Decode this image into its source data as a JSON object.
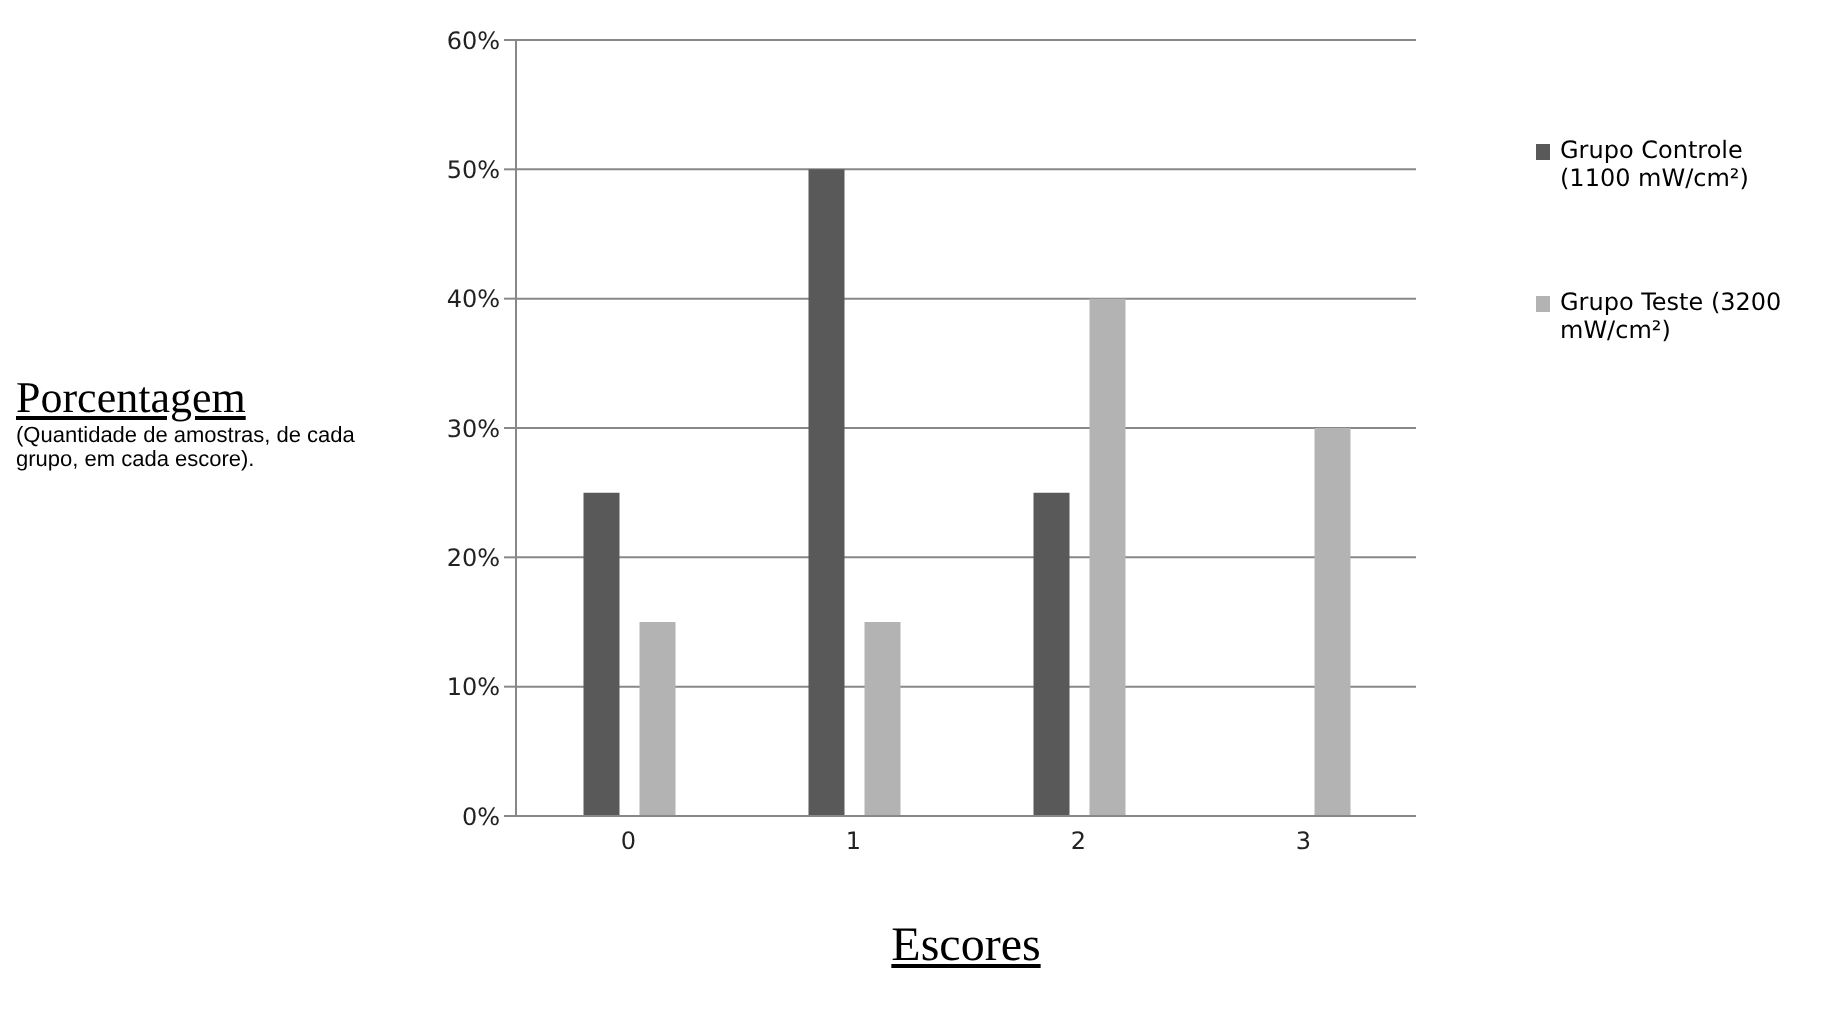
{
  "chart_data": {
    "type": "bar",
    "categories": [
      "0",
      "1",
      "2",
      "3"
    ],
    "series": [
      {
        "name": "Grupo Controle (1100 mW/cm²)",
        "color": "#595959",
        "values": [
          25,
          50,
          25,
          0
        ]
      },
      {
        "name": "Grupo Teste (3200 mW/cm²)",
        "color": "#b3b3b3",
        "values": [
          15,
          15,
          40,
          30
        ]
      }
    ],
    "xlabel": "Escores",
    "ylabel": "Porcentagem",
    "annotations": [
      "(Quantidade de amostras, de cada grupo, em cada escore)."
    ],
    "ylim": [
      0,
      60
    ],
    "yticks": [
      {
        "value": 0,
        "label": "0%"
      },
      {
        "value": 10,
        "label": "10%"
      },
      {
        "value": 20,
        "label": "20%"
      },
      {
        "value": 30,
        "label": "30%"
      },
      {
        "value": 40,
        "label": "40%"
      },
      {
        "value": 50,
        "label": "50%"
      },
      {
        "value": 60,
        "label": "60%"
      }
    ],
    "grid": "y",
    "legend": "right"
  }
}
